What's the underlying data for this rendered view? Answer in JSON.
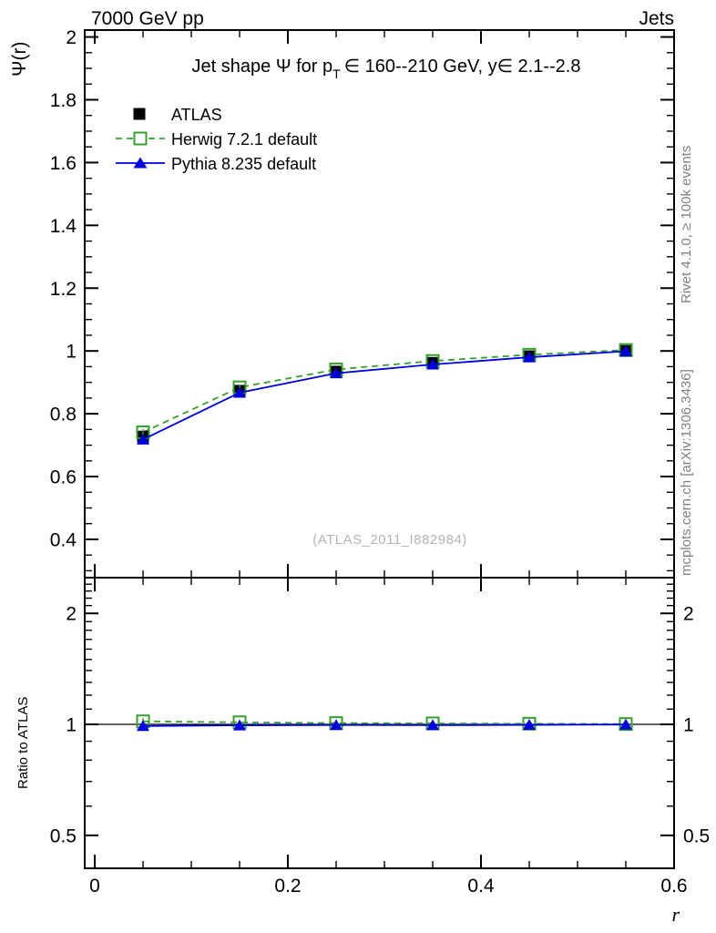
{
  "header": {
    "left": "7000 GeV pp",
    "right": "Jets"
  },
  "title": {
    "prefix": "Jet shape Ψ for p",
    "sub": "T",
    "suffix": "∈ 160--210 GeV, y∈ 2.1--2.8"
  },
  "side_labels": {
    "rivet": "Rivet 4.1.0, ≥ 100k events",
    "mcplots": "mcplots.cern.ch [arXiv:1306.3436]"
  },
  "watermark": "(ATLAS_2011_I882984)",
  "axis_labels": {
    "y_main": "Ψ(r)",
    "y_ratio": "Ratio to ATLAS",
    "x": "r"
  },
  "colors": {
    "atlas": "#000000",
    "herwig": "#33a02c",
    "pythia": "#0000e0",
    "frame": "#000000",
    "gray_text": "#808080",
    "watermark": "#b3b3b3"
  },
  "legend": {
    "items": [
      {
        "label": "ATLAS",
        "marker": "filled-square",
        "line": "none"
      },
      {
        "label": "Herwig 7.2.1 default",
        "marker": "open-square",
        "line": "dashed"
      },
      {
        "label": "Pythia 8.235 default",
        "marker": "filled-triangle",
        "line": "solid"
      }
    ]
  },
  "chart_data": {
    "type": "line",
    "x": [
      0.05,
      0.15,
      0.25,
      0.35,
      0.45,
      0.55
    ],
    "xlabel": "r",
    "xlim": [
      -0.0104,
      0.6
    ],
    "xticks_major": [
      0,
      0.2,
      0.4,
      0.6
    ],
    "xtick_labels": [
      "0",
      "0.2",
      "0.4",
      "0.6"
    ],
    "xtick_minor_step": 0.05,
    "main_panel": {
      "ylabel": "Ψ(r)",
      "scale": "linear",
      "ylim": [
        0.278,
        2.022
      ],
      "yticks_major": [
        0.4,
        0.6,
        0.8,
        1.0,
        1.2,
        1.4,
        1.6,
        1.8,
        2.0
      ],
      "ytick_labels": [
        "0.4",
        "0.6",
        "0.8",
        "1",
        "1.2",
        "1.4",
        "1.6",
        "1.8",
        "2"
      ],
      "ytick_minor_step": 0.05,
      "series": [
        {
          "name": "ATLAS",
          "role": "data",
          "marker": "filled-square",
          "line": "none",
          "values": [
            0.727,
            0.873,
            0.934,
            0.962,
            0.983,
            1.0
          ],
          "errors": [
            0.018,
            0.011,
            0.007,
            0.005,
            0.004,
            0.002
          ]
        },
        {
          "name": "Herwig 7.2.1 default",
          "role": "mc",
          "marker": "open-square",
          "line": "dashed",
          "values": [
            0.741,
            0.884,
            0.941,
            0.968,
            0.988,
            1.003
          ],
          "errors": [
            0.01,
            0.006,
            0.004,
            0.003,
            0.002,
            0.002
          ]
        },
        {
          "name": "Pythia 8.235 default",
          "role": "mc",
          "marker": "filled-triangle",
          "line": "solid",
          "values": [
            0.718,
            0.867,
            0.929,
            0.957,
            0.98,
            0.999
          ],
          "errors": [
            0.01,
            0.006,
            0.004,
            0.003,
            0.002,
            0.002
          ]
        }
      ]
    },
    "ratio_panel": {
      "ylabel": "Ratio to ATLAS",
      "scale": "log",
      "ylim": [
        0.407,
        2.5
      ],
      "yticks_major": [
        0.5,
        1,
        2
      ],
      "ytick_labels": [
        "0.5",
        "1",
        "2"
      ],
      "reference_line": 1,
      "series": [
        {
          "name": "Herwig 7.2.1 default",
          "marker": "open-square",
          "line": "dashed",
          "values": [
            1.019,
            1.013,
            1.008,
            1.006,
            1.004,
            1.002
          ],
          "errors": [
            0.02,
            0.012,
            0.008,
            0.006,
            0.005,
            0.003
          ]
        },
        {
          "name": "Pythia 8.235 default",
          "marker": "filled-triangle",
          "line": "solid",
          "values": [
            0.99,
            0.994,
            0.996,
            0.995,
            0.997,
            0.999
          ],
          "errors": [
            0.018,
            0.011,
            0.007,
            0.005,
            0.004,
            0.003
          ]
        }
      ]
    }
  }
}
